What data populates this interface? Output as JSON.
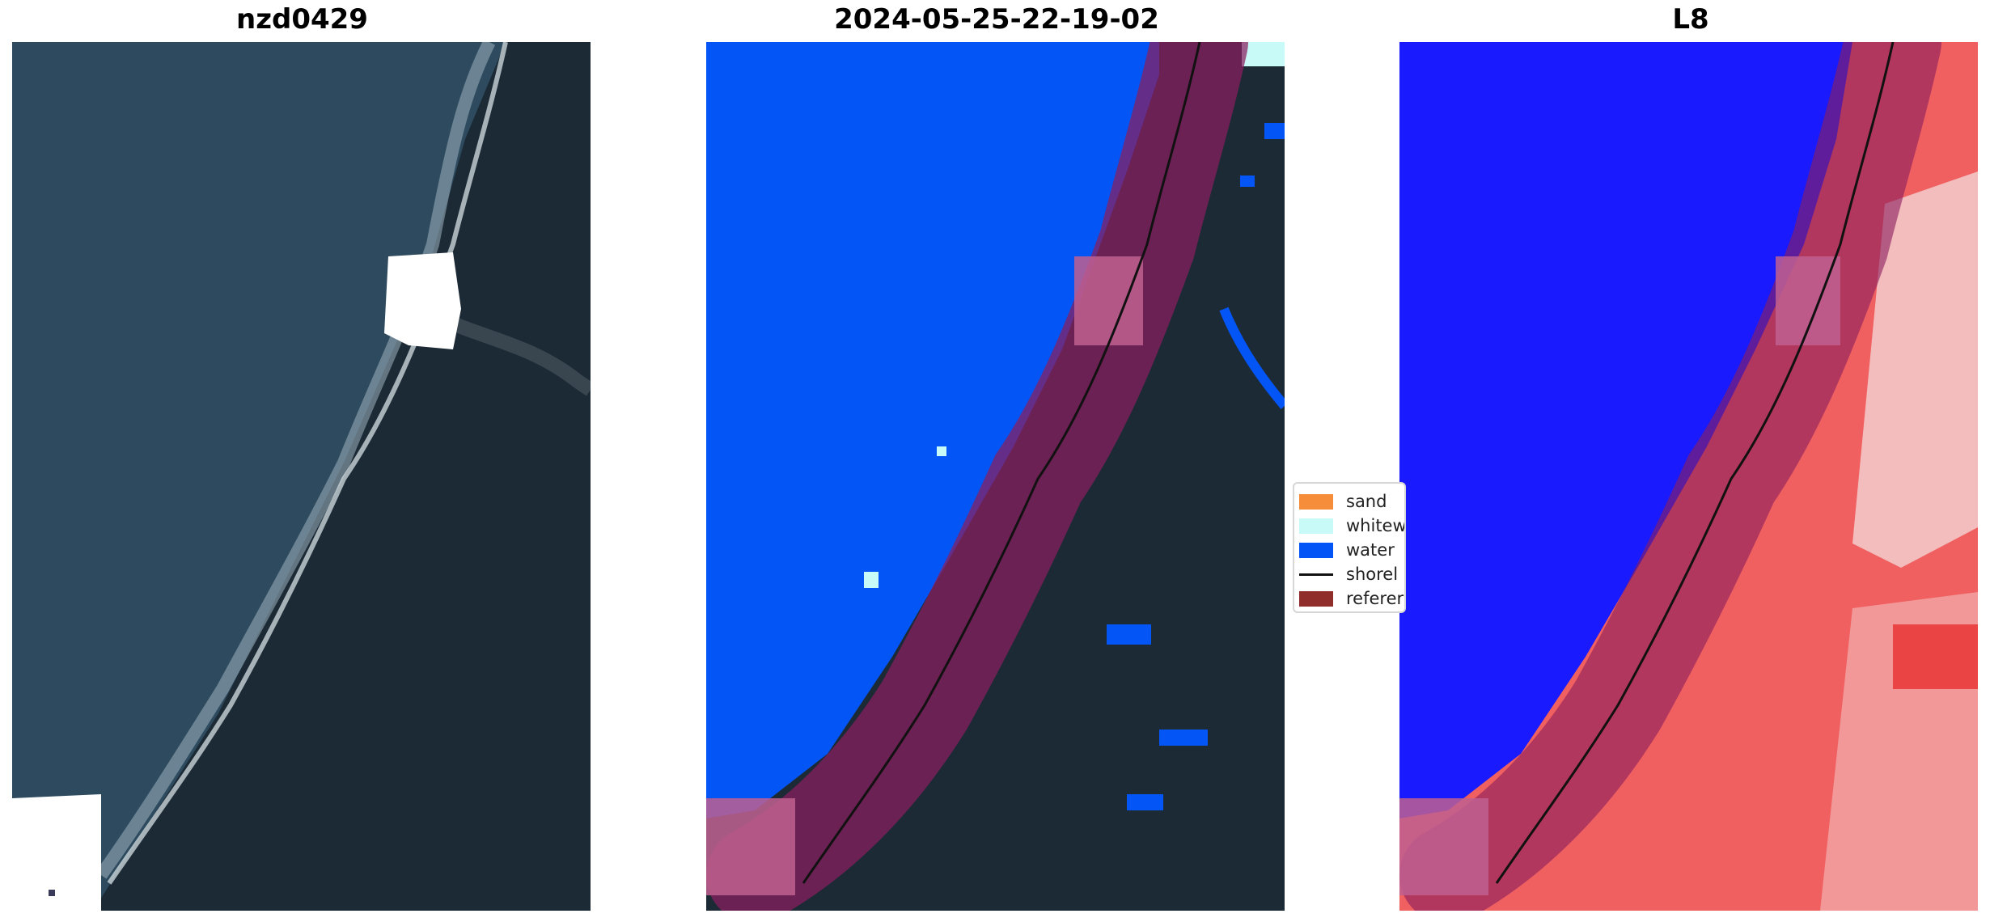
{
  "panels": [
    {
      "title": "nzd0429"
    },
    {
      "title": "2024-05-25-22-19-02"
    },
    {
      "title": "L8"
    }
  ],
  "legend": {
    "items": [
      {
        "label": "sand",
        "color": "#f58d3a"
      },
      {
        "label": "whitew",
        "color": "#c8fbf8"
      },
      {
        "label": "water",
        "color": "#0355f5"
      },
      {
        "label": "shorel",
        "color": "#111111"
      },
      {
        "label": "referer",
        "color": "#8f2e2a"
      }
    ]
  },
  "colors": {
    "ocean": "#2d4a5e",
    "land": "#1c2a36",
    "water_class": "#0355f5",
    "buffer_overlay": "#8a1f5e",
    "ndwi_water": "#1a1aff",
    "ndwi_land": "#f03030",
    "masked": "#ffffff"
  }
}
